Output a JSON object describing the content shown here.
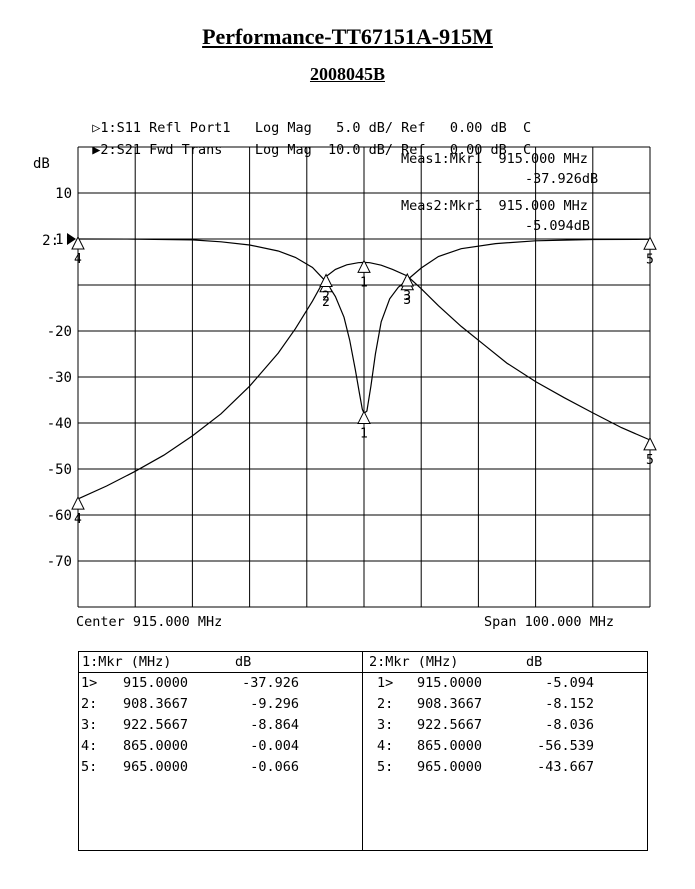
{
  "title": "Performance-TT67151A-915M",
  "subtitle": "2008045B",
  "traces": [
    {
      "marker": "▷",
      "text": "1:S11 Refl Port1   Log Mag   5.0 dB/ Ref   0.00 dB  C"
    },
    {
      "marker": "▶",
      "text": "2:S21 Fwd Trans    Log Mag  10.0 dB/ Ref   0.00 dB  C"
    }
  ],
  "meas": [
    {
      "line1": "Meas1:Mkr1  915.000 MHz",
      "line2": "-37.926dB"
    },
    {
      "line1": "Meas2:Mkr1  915.000 MHz",
      "line2": "-5.094dB"
    }
  ],
  "footer": {
    "center": "Center 915.000 MHz",
    "span": "Span 100.000 MHz"
  },
  "table": {
    "left": {
      "header": {
        "mkr": "1:Mkr (MHz)",
        "unit": "dB"
      },
      "rows": [
        {
          "id": "1>",
          "freq": "915.0000",
          "val": "-37.926"
        },
        {
          "id": "2:",
          "freq": "908.3667",
          "val": "-9.296"
        },
        {
          "id": "3:",
          "freq": "922.5667",
          "val": "-8.864"
        },
        {
          "id": "4:",
          "freq": "865.0000",
          "val": "-0.004"
        },
        {
          "id": "5:",
          "freq": "965.0000",
          "val": "-0.066"
        }
      ]
    },
    "right": {
      "header": {
        "mkr": "2:Mkr (MHz)",
        "unit": "dB"
      },
      "rows": [
        {
          "id": "1>",
          "freq": "915.0000",
          "val": "-5.094"
        },
        {
          "id": "2:",
          "freq": "908.3667",
          "val": "-8.152"
        },
        {
          "id": "3:",
          "freq": "922.5667",
          "val": "-8.036"
        },
        {
          "id": "4:",
          "freq": "865.0000",
          "val": "-56.539"
        },
        {
          "id": "5:",
          "freq": "965.0000",
          "val": "-43.667"
        }
      ]
    }
  },
  "chart_data": {
    "type": "line",
    "ylabel": "dB",
    "xlim": [
      865,
      965
    ],
    "ylim": [
      -80,
      20
    ],
    "grid": true,
    "y_tick_labels": [
      {
        "value": 10,
        "label": "10"
      },
      {
        "value": 0,
        "label": "1:"
      },
      {
        "value": -20,
        "label": "-20"
      },
      {
        "value": -30,
        "label": "-30"
      },
      {
        "value": -40,
        "label": "-40"
      },
      {
        "value": -50,
        "label": "-50"
      },
      {
        "value": -60,
        "label": "-60"
      },
      {
        "value": -70,
        "label": "-70"
      }
    ],
    "ref_marker": {
      "value": 0,
      "label": "2:",
      "channel": "S21"
    },
    "series": [
      {
        "name": "S11",
        "channel": 1,
        "x": [
          865,
          875,
          885,
          890,
          895,
          900,
          903,
          906,
          908.37,
          910,
          911.5,
          912.5,
          913.5,
          914.2,
          914.7,
          915,
          915.5,
          916.2,
          917,
          918,
          919.5,
          921,
          922.57,
          925,
          928,
          932,
          938,
          945,
          955,
          965
        ],
        "y": [
          0,
          -0.02,
          -0.2,
          -0.6,
          -1.3,
          -2.6,
          -4.0,
          -6.2,
          -9.3,
          -12.5,
          -17,
          -22,
          -28.5,
          -33.5,
          -37.0,
          -37.9,
          -37.4,
          -32,
          -25,
          -18,
          -13,
          -10.5,
          -8.9,
          -6.3,
          -3.8,
          -2.1,
          -1.0,
          -0.4,
          -0.1,
          -0.07
        ]
      },
      {
        "name": "S21",
        "channel": 2,
        "x": [
          865,
          870,
          875,
          880,
          885,
          890,
          895,
          900,
          903,
          906,
          908.37,
          910,
          912,
          914,
          915,
          916,
          918,
          920,
          922.57,
          925,
          928,
          932,
          936,
          940,
          945,
          950,
          955,
          960,
          965
        ],
        "y": [
          -56.5,
          -53.7,
          -50.5,
          -47,
          -42.8,
          -38.0,
          -32.0,
          -24.8,
          -19.5,
          -13.5,
          -8.15,
          -6.6,
          -5.6,
          -5.15,
          -5.09,
          -5.15,
          -5.7,
          -6.6,
          -8.04,
          -10.8,
          -14.5,
          -19.0,
          -23.0,
          -27.0,
          -31.0,
          -34.5,
          -37.8,
          -41.0,
          -43.7
        ]
      }
    ],
    "markers": [
      {
        "series": "S11",
        "id": "1",
        "x": 915.0,
        "y": -37.926
      },
      {
        "series": "S11",
        "id": "2",
        "x": 908.3667,
        "y": -9.296
      },
      {
        "series": "S11",
        "id": "3",
        "x": 922.5667,
        "y": -8.864
      },
      {
        "series": "S11",
        "id": "4",
        "x": 865.0,
        "y": -0.004
      },
      {
        "series": "S11",
        "id": "5",
        "x": 965.0,
        "y": -0.066
      },
      {
        "series": "S21",
        "id": "1",
        "x": 915.0,
        "y": -5.094
      },
      {
        "series": "S21",
        "id": "2",
        "x": 908.3667,
        "y": -8.152
      },
      {
        "series": "S21",
        "id": "3",
        "x": 922.5667,
        "y": -8.036
      },
      {
        "series": "S21",
        "id": "4",
        "x": 865.0,
        "y": -56.539
      },
      {
        "series": "S21",
        "id": "5",
        "x": 965.0,
        "y": -43.667
      }
    ]
  }
}
